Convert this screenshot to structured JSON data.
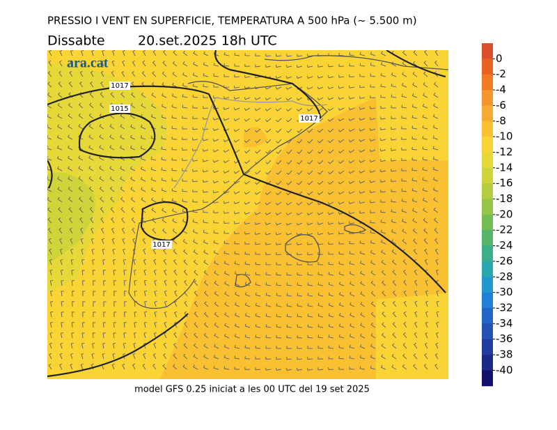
{
  "header": {
    "title": "PRESSIO I VENT EN SUPERFICIE, TEMPERATURA A 500 hPa (~ 5.500 m)",
    "day": "Dissabte",
    "date": "20.set.2025 18h UTC"
  },
  "map": {
    "logo": "ara.cat",
    "isobar_labels": [
      "1017",
      "1015",
      "1017",
      "1017"
    ]
  },
  "colorbar": {
    "ticks": [
      0,
      -2,
      -4,
      -6,
      -8,
      -10,
      -12,
      -14,
      -16,
      -18,
      -20,
      -22,
      -24,
      -26,
      -28,
      -30,
      -32,
      -34,
      -36,
      -38,
      -40
    ],
    "colors": [
      "#d9502a",
      "#ea6124",
      "#f07a25",
      "#f49530",
      "#f6aa30",
      "#f9c032",
      "#fad435",
      "#e6d838",
      "#cfd43a",
      "#b4cd40",
      "#95c548",
      "#74bd55",
      "#55b56a",
      "#3eae8a",
      "#2aa7ad",
      "#2196cf",
      "#1f7fd9",
      "#2366c9",
      "#2451b3",
      "#203c9e",
      "#1b2a86",
      "#140f6a"
    ]
  },
  "footer": {
    "text": "model GFS 0.25 iniciat a les 00 UTC del 19 set 2025"
  }
}
